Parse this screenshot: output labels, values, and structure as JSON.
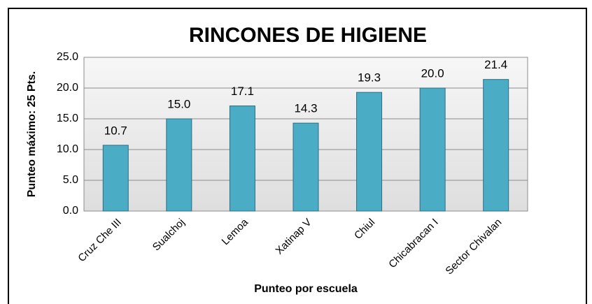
{
  "chart_data": {
    "type": "bar",
    "title": "RINCONES DE HIGIENE",
    "xlabel": "Punteo por escuela",
    "ylabel": "Punteo máximo: 25 Pts.",
    "categories": [
      "Cruz Che III",
      "Sualchoj",
      "Lemoa",
      "Xatinap V",
      "Chiul",
      "Chicabracan I",
      "Sector Chivalan"
    ],
    "values": [
      10.7,
      15.0,
      17.1,
      14.3,
      19.3,
      20.0,
      21.4
    ],
    "value_labels": [
      "10.7",
      "15.0",
      "17.1",
      "14.3",
      "19.3",
      "20.0",
      "21.4"
    ],
    "color": "#4bacc6",
    "ylim": [
      0,
      25
    ],
    "yticks": [
      {
        "value": 0,
        "label": "0.0"
      },
      {
        "value": 5,
        "label": "5.0"
      },
      {
        "value": 10,
        "label": "10.0"
      },
      {
        "value": 15,
        "label": "15.0"
      },
      {
        "value": 20,
        "label": "20.0"
      },
      {
        "value": 25,
        "label": "25.0"
      }
    ],
    "grid": true
  }
}
